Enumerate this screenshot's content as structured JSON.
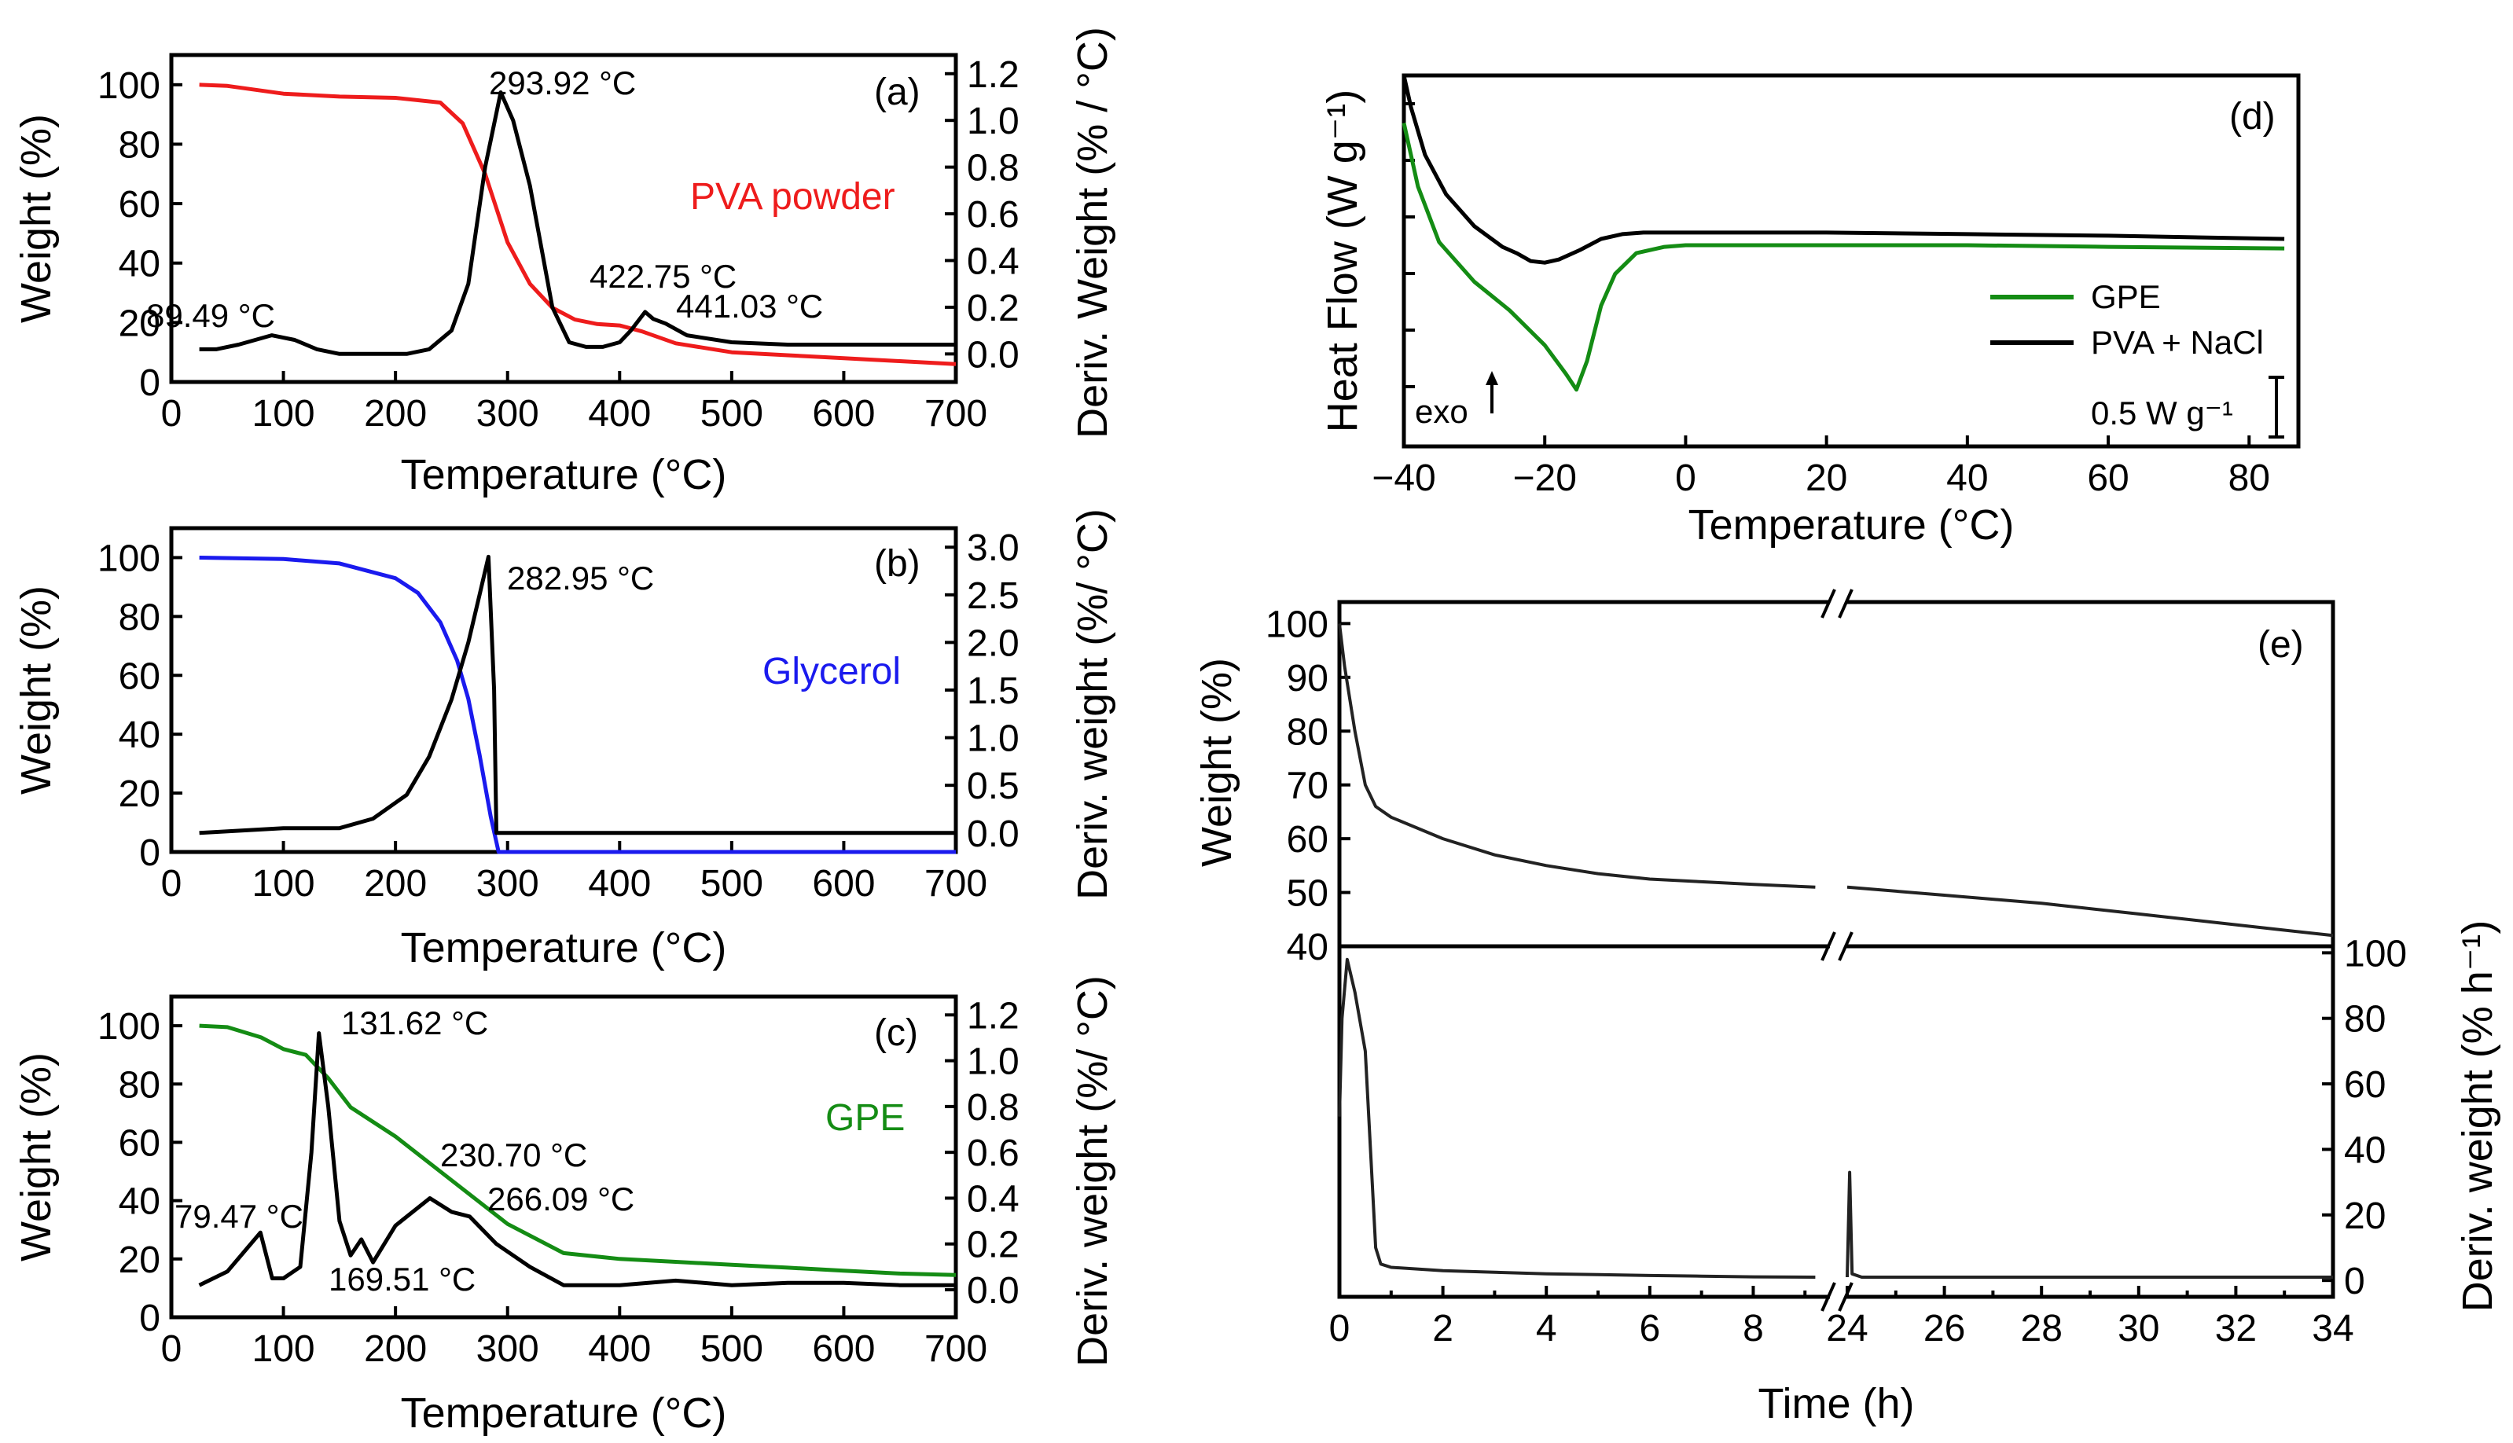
{
  "chart_data": [
    {
      "panel": "(a)",
      "type": "line",
      "sample_label": "PVA powder",
      "sample_color": "#ee1c1c",
      "xlabel": "Temperature (°C)",
      "ylabel": "Weight (%)",
      "y2label": "Deriv. Weight (% / °C)",
      "xlim": [
        0,
        700
      ],
      "ylim": [
        0,
        110
      ],
      "y2lim": [
        -0.12,
        1.28
      ],
      "xticks": [
        "0",
        "100",
        "200",
        "300",
        "400",
        "500",
        "600",
        "700"
      ],
      "yticks": [
        "0",
        "20",
        "40",
        "60",
        "80",
        "100"
      ],
      "y2ticks": [
        "0.0",
        "0.2",
        "0.4",
        "0.6",
        "0.8",
        "1.0",
        "1.2"
      ],
      "series": [
        {
          "name": "Weight",
          "axis": "y",
          "color": "#ee1c1c",
          "x": [
            25,
            50,
            100,
            150,
            200,
            240,
            260,
            280,
            300,
            320,
            340,
            360,
            380,
            400,
            420,
            450,
            500,
            550,
            600,
            650,
            700
          ],
          "y": [
            100,
            99.6,
            97,
            96,
            95.6,
            94,
            87,
            70,
            47,
            33,
            25,
            21,
            19.5,
            19,
            17,
            13,
            10,
            9,
            8,
            7,
            6
          ]
        },
        {
          "name": "Deriv. weight",
          "axis": "y2",
          "color": "#000000",
          "x": [
            25,
            40,
            60,
            89.49,
            110,
            130,
            150,
            180,
            210,
            230,
            250,
            265,
            280,
            293.92,
            305,
            320,
            340,
            355,
            370,
            385,
            400,
            410,
            422.75,
            430,
            441.03,
            460,
            500,
            550,
            600,
            650,
            700
          ],
          "y": [
            0.02,
            0.02,
            0.04,
            0.08,
            0.06,
            0.02,
            0.0,
            0.0,
            0.0,
            0.02,
            0.1,
            0.3,
            0.8,
            1.12,
            1.0,
            0.72,
            0.2,
            0.05,
            0.03,
            0.03,
            0.05,
            0.1,
            0.18,
            0.15,
            0.13,
            0.08,
            0.05,
            0.04,
            0.04,
            0.04,
            0.04
          ]
        }
      ],
      "annotations": [
        "89.49 °C",
        "293.92 °C",
        "422.75 °C",
        "441.03 °C"
      ]
    },
    {
      "panel": "(b)",
      "type": "line",
      "sample_label": "Glycerol",
      "sample_color": "#1a1aee",
      "xlabel": "Temperature (°C)",
      "ylabel": "Weight (%)",
      "y2label": "Deriv. weight (%/ °C)",
      "xlim": [
        0,
        700
      ],
      "ylim": [
        0,
        110
      ],
      "y2lim": [
        -0.2,
        3.2
      ],
      "xticks": [
        "0",
        "100",
        "200",
        "300",
        "400",
        "500",
        "600",
        "700"
      ],
      "yticks": [
        "0",
        "20",
        "40",
        "60",
        "80",
        "100"
      ],
      "y2ticks": [
        "0.0",
        "0.5",
        "1.0",
        "1.5",
        "2.0",
        "2.5",
        "3.0"
      ],
      "series": [
        {
          "name": "Weight",
          "axis": "y",
          "color": "#1a1aee",
          "x": [
            25,
            100,
            150,
            200,
            220,
            240,
            255,
            265,
            275,
            285,
            292,
            300,
            400,
            500,
            600,
            700
          ],
          "y": [
            100,
            99.5,
            98,
            93,
            88,
            78,
            65,
            52,
            33,
            12,
            0,
            0,
            0,
            0,
            0,
            0
          ]
        },
        {
          "name": "Deriv. weight",
          "axis": "y2",
          "color": "#000000",
          "x": [
            25,
            100,
            150,
            180,
            210,
            230,
            250,
            265,
            275,
            282.95,
            288,
            290,
            300,
            400,
            500,
            600,
            700
          ],
          "y": [
            0.0,
            0.05,
            0.05,
            0.15,
            0.4,
            0.8,
            1.4,
            2.0,
            2.5,
            2.9,
            1.5,
            0.0,
            0.0,
            0.0,
            0.0,
            0.0,
            0.0
          ]
        }
      ],
      "annotations": [
        "282.95 °C"
      ]
    },
    {
      "panel": "(c)",
      "type": "line",
      "sample_label": "GPE",
      "sample_color": "#148c14",
      "xlabel": "Temperature (°C)",
      "ylabel": "Weight (%)",
      "y2label": "Deriv. weight (%/ °C)",
      "xlim": [
        0,
        700
      ],
      "ylim": [
        0,
        110
      ],
      "y2lim": [
        -0.12,
        1.28
      ],
      "xticks": [
        "0",
        "100",
        "200",
        "300",
        "400",
        "500",
        "600",
        "700"
      ],
      "yticks": [
        "0",
        "20",
        "40",
        "60",
        "80",
        "100"
      ],
      "y2ticks": [
        "0.0",
        "0.2",
        "0.4",
        "0.6",
        "0.8",
        "1.0",
        "1.2"
      ],
      "series": [
        {
          "name": "Weight",
          "axis": "y",
          "color": "#148c14",
          "x": [
            25,
            50,
            80,
            100,
            120,
            140,
            160,
            200,
            250,
            300,
            350,
            400,
            450,
            500,
            550,
            600,
            650,
            700
          ],
          "y": [
            100,
            99.5,
            96,
            92,
            90,
            82,
            72,
            62,
            47,
            32,
            22,
            20,
            19,
            18,
            17,
            16,
            15,
            14.5
          ]
        },
        {
          "name": "Deriv. weight",
          "axis": "y2",
          "color": "#000000",
          "x": [
            25,
            50,
            79.47,
            90,
            100,
            115,
            125,
            131.62,
            140,
            150,
            160,
            169.51,
            180,
            200,
            230.7,
            250,
            266.09,
            290,
            320,
            350,
            400,
            450,
            500,
            550,
            600,
            650,
            700
          ],
          "y": [
            0.02,
            0.08,
            0.25,
            0.05,
            0.05,
            0.1,
            0.6,
            1.12,
            0.8,
            0.3,
            0.15,
            0.22,
            0.12,
            0.28,
            0.4,
            0.34,
            0.32,
            0.2,
            0.1,
            0.02,
            0.02,
            0.04,
            0.02,
            0.03,
            0.03,
            0.02,
            0.02
          ]
        }
      ],
      "annotations": [
        "79.47 °C",
        "131.62 °C",
        "169.51 °C",
        "230.70 °C",
        "266.09 °C"
      ]
    },
    {
      "panel": "(d)",
      "type": "line",
      "xlabel": "Temperature (°C)",
      "ylabel": "Heat Flow (W g⁻¹)",
      "xlim": [
        -40,
        87
      ],
      "xticks": [
        "−40",
        "−20",
        "0",
        "20",
        "40",
        "60",
        "80"
      ],
      "scale_bar": "0.5 W g⁻¹",
      "exo_label": "exo",
      "series": [
        {
          "name": "GPE",
          "color": "#148c14",
          "x": [
            -40,
            -38,
            -35,
            -30,
            -25,
            -20,
            -17,
            -15.5,
            -14,
            -12,
            -10,
            -7,
            -3,
            0,
            20,
            40,
            60,
            85
          ],
          "y": [
            0.9,
            0.5,
            0.15,
            -0.1,
            -0.28,
            -0.5,
            -0.68,
            -0.78,
            -0.6,
            -0.25,
            -0.05,
            0.08,
            0.12,
            0.13,
            0.13,
            0.13,
            0.12,
            0.11
          ]
        },
        {
          "name": "PVA + NaCl",
          "color": "#000000",
          "x": [
            -40,
            -39,
            -37,
            -34,
            -30,
            -26,
            -24,
            -22,
            -20,
            -18,
            -15,
            -12,
            -9,
            -6,
            0,
            20,
            40,
            60,
            85
          ],
          "y": [
            1.2,
            1.0,
            0.7,
            0.45,
            0.25,
            0.12,
            0.08,
            0.03,
            0.02,
            0.04,
            0.1,
            0.17,
            0.2,
            0.21,
            0.21,
            0.21,
            0.2,
            0.19,
            0.17
          ]
        }
      ]
    },
    {
      "panel": "(e)",
      "type": "line",
      "xlabel": "Time (h)",
      "ylabel": "Weight (%)",
      "y2label": "Deriv. weight (% h⁻¹)",
      "ylim_top": [
        40,
        104
      ],
      "y2lim_bottom": [
        -5,
        102
      ],
      "x_segments": [
        [
          0,
          9.3
        ],
        [
          24,
          34
        ]
      ],
      "xticks_left": [
        "0",
        "2",
        "4",
        "6",
        "8"
      ],
      "xticks_right": [
        "24",
        "26",
        "28",
        "30",
        "32",
        "34"
      ],
      "yticks_top": [
        "40",
        "50",
        "60",
        "70",
        "80",
        "90",
        "100"
      ],
      "y2ticks_bottom": [
        "0",
        "20",
        "40",
        "60",
        "80",
        "100"
      ],
      "series": [
        {
          "name": "Weight",
          "axis": "top",
          "color": "#222222",
          "x": [
            0,
            0.1,
            0.3,
            0.5,
            0.7,
            1,
            2,
            3,
            4,
            5,
            6,
            7,
            8,
            9.2,
            24,
            26,
            28,
            30,
            32,
            34
          ],
          "y": [
            100,
            92,
            80,
            70,
            66,
            64,
            60,
            57,
            55,
            53.5,
            52.5,
            52,
            51.5,
            51,
            51,
            49.5,
            48,
            46,
            44,
            42
          ]
        },
        {
          "name": "Deriv. weight",
          "axis": "bottom",
          "color": "#222222",
          "x": [
            0,
            0.05,
            0.15,
            0.3,
            0.5,
            0.6,
            0.7,
            0.8,
            1,
            2,
            3,
            4,
            5,
            6,
            7,
            8,
            9.2,
            24,
            24.05,
            24.1,
            24.3,
            26,
            28,
            30,
            32,
            34
          ],
          "y": [
            50,
            80,
            98,
            88,
            70,
            40,
            10,
            5,
            4,
            3,
            2.5,
            2,
            1.8,
            1.5,
            1.3,
            1.1,
            1,
            1,
            33,
            2,
            1,
            1,
            1,
            1,
            1,
            1
          ]
        }
      ]
    }
  ]
}
